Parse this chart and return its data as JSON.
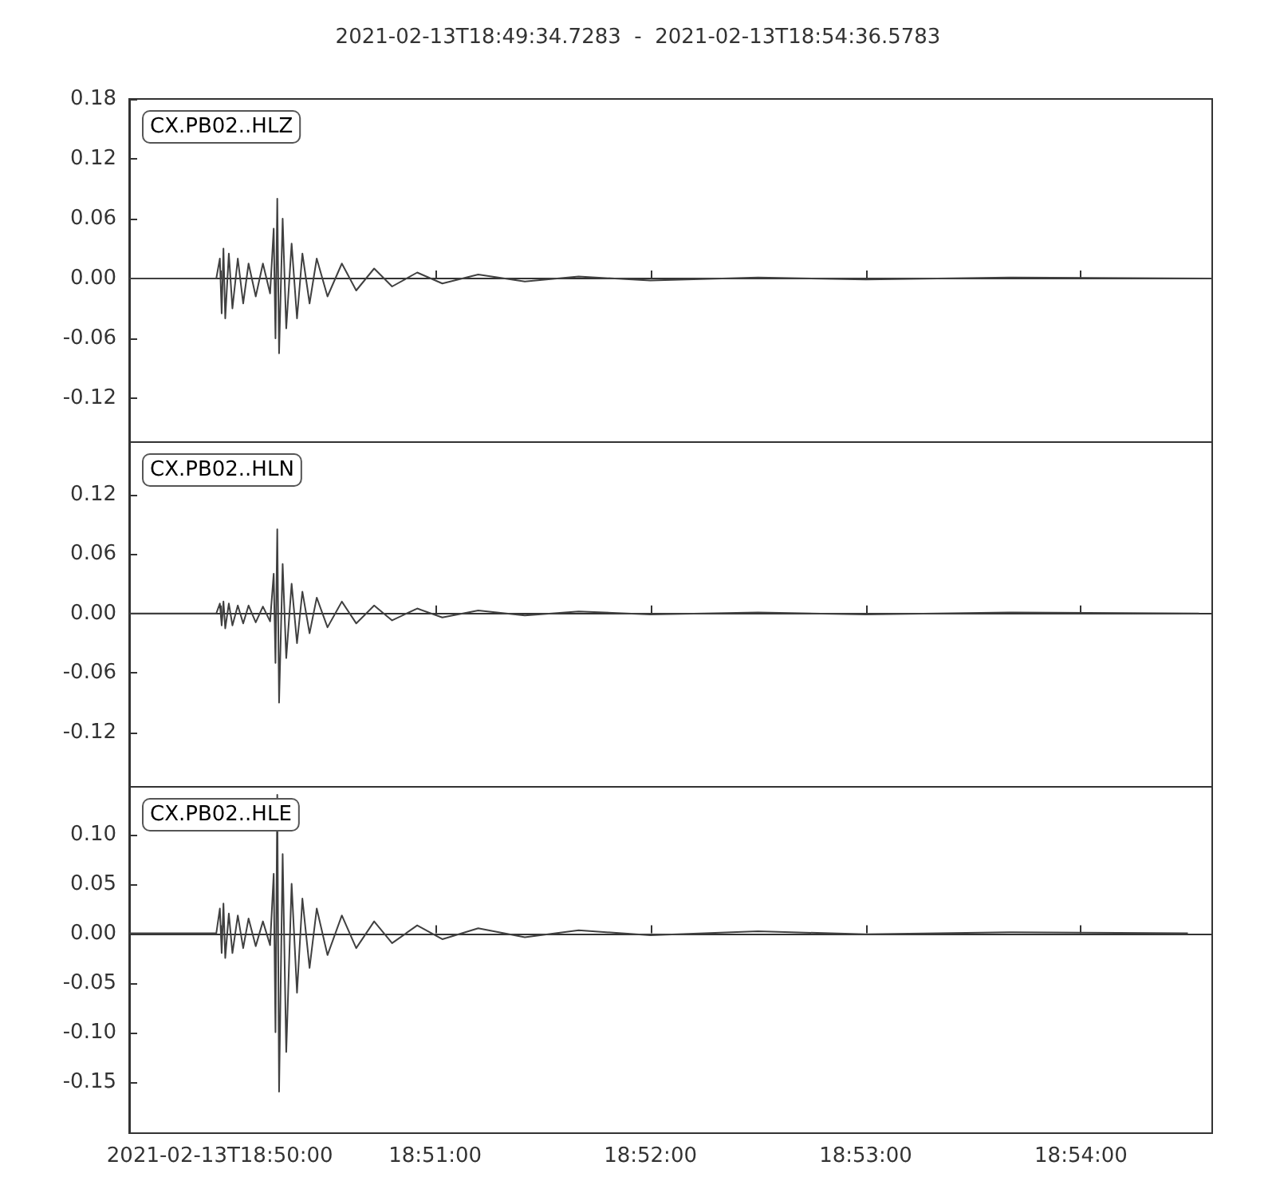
{
  "chart_data": [
    {
      "type": "line",
      "title": "2021-02-13T18:49:34.7283  -  2021-02-13T18:54:36.5783",
      "annotations": [
        "CX.PB02..HLZ"
      ],
      "tick_labels": "y",
      "xlim": [
        "2021-02-13T18:49:34.7283",
        "2021-02-13T18:54:36.5783"
      ],
      "xticks": [
        {
          "value": "2021-02-13T18:50:00",
          "label": null
        },
        {
          "value": "2021-02-13T18:51:00",
          "label": null
        },
        {
          "value": "2021-02-13T18:52:00",
          "label": null
        },
        {
          "value": "2021-02-13T18:53:00",
          "label": null
        },
        {
          "value": "2021-02-13T18:54:00",
          "label": null
        }
      ],
      "ylim": [
        -0.164,
        0.18
      ],
      "yticks": [
        {
          "value": -0.12,
          "label": "-0.12"
        },
        {
          "value": -0.06,
          "label": "-0.06"
        },
        {
          "value": 0,
          "label": "0.00"
        },
        {
          "value": 0.06,
          "label": "0.06"
        },
        {
          "value": 0.12,
          "label": "0.12"
        },
        {
          "value": 0.18,
          "label": "0.18"
        }
      ],
      "x": [
        "2021-02-13T18:49:34.7283",
        "2021-02-13T18:49:59",
        "2021-02-13T18:50:00",
        "2021-02-13T18:50:00.5",
        "2021-02-13T18:50:01",
        "2021-02-13T18:50:01.5",
        "2021-02-13T18:50:02.5",
        "2021-02-13T18:50:03.5",
        "2021-02-13T18:50:05",
        "2021-02-13T18:50:06.5",
        "2021-02-13T18:50:08",
        "2021-02-13T18:50:10",
        "2021-02-13T18:50:12",
        "2021-02-13T18:50:14",
        "2021-02-13T18:50:15",
        "2021-02-13T18:50:15.5",
        "2021-02-13T18:50:16",
        "2021-02-13T18:50:16.5",
        "2021-02-13T18:50:17.5",
        "2021-02-13T18:50:18.5",
        "2021-02-13T18:50:20",
        "2021-02-13T18:50:21.5",
        "2021-02-13T18:50:23",
        "2021-02-13T18:50:25",
        "2021-02-13T18:50:27",
        "2021-02-13T18:50:30",
        "2021-02-13T18:50:34",
        "2021-02-13T18:50:38",
        "2021-02-13T18:50:43",
        "2021-02-13T18:50:48",
        "2021-02-13T18:50:55",
        "2021-02-13T18:51:02",
        "2021-02-13T18:51:12",
        "2021-02-13T18:51:25",
        "2021-02-13T18:51:40",
        "2021-02-13T18:52:00",
        "2021-02-13T18:52:30",
        "2021-02-13T18:53:00",
        "2021-02-13T18:53:40",
        "2021-02-13T18:54:36.5783"
      ],
      "series": [
        {
          "color": "#404040",
          "values": [
            0,
            0,
            0.02,
            -0.035,
            0.03,
            -0.04,
            0.025,
            -0.03,
            0.02,
            -0.025,
            0.015,
            -0.018,
            0.015,
            -0.015,
            0.05,
            -0.06,
            0.08,
            -0.075,
            0.06,
            -0.05,
            0.035,
            -0.04,
            0.025,
            -0.025,
            0.02,
            -0.018,
            0.015,
            -0.012,
            0.01,
            -0.008,
            0.006,
            -0.005,
            0.004,
            -0.003,
            0.002,
            -0.002,
            0.001,
            -0.001,
            0.001,
            0
          ]
        }
      ]
    },
    {
      "type": "line",
      "annotations": [
        "CX.PB02..HLN"
      ],
      "tick_labels": "y",
      "xlim": [
        "2021-02-13T18:49:34.7283",
        "2021-02-13T18:54:36.5783"
      ],
      "xticks": [
        {
          "value": "2021-02-13T18:50:00",
          "label": null
        },
        {
          "value": "2021-02-13T18:51:00",
          "label": null
        },
        {
          "value": "2021-02-13T18:52:00",
          "label": null
        },
        {
          "value": "2021-02-13T18:53:00",
          "label": null
        },
        {
          "value": "2021-02-13T18:54:00",
          "label": null
        }
      ],
      "ylim": [
        -0.175,
        0.173
      ],
      "yticks": [
        {
          "value": -0.12,
          "label": "-0.12"
        },
        {
          "value": -0.06,
          "label": "-0.06"
        },
        {
          "value": 0,
          "label": "0.00"
        },
        {
          "value": 0.06,
          "label": "0.06"
        },
        {
          "value": 0.12,
          "label": "0.12"
        }
      ],
      "x": [
        "2021-02-13T18:49:34.7283",
        "2021-02-13T18:49:59",
        "2021-02-13T18:50:00",
        "2021-02-13T18:50:00.5",
        "2021-02-13T18:50:01",
        "2021-02-13T18:50:01.5",
        "2021-02-13T18:50:02.5",
        "2021-02-13T18:50:03.5",
        "2021-02-13T18:50:05",
        "2021-02-13T18:50:06.5",
        "2021-02-13T18:50:08",
        "2021-02-13T18:50:10",
        "2021-02-13T18:50:12",
        "2021-02-13T18:50:14",
        "2021-02-13T18:50:15",
        "2021-02-13T18:50:15.5",
        "2021-02-13T18:50:16",
        "2021-02-13T18:50:16.5",
        "2021-02-13T18:50:17.5",
        "2021-02-13T18:50:18.5",
        "2021-02-13T18:50:20",
        "2021-02-13T18:50:21.5",
        "2021-02-13T18:50:23",
        "2021-02-13T18:50:25",
        "2021-02-13T18:50:27",
        "2021-02-13T18:50:30",
        "2021-02-13T18:50:34",
        "2021-02-13T18:50:38",
        "2021-02-13T18:50:43",
        "2021-02-13T18:50:48",
        "2021-02-13T18:50:55",
        "2021-02-13T18:51:02",
        "2021-02-13T18:51:12",
        "2021-02-13T18:51:25",
        "2021-02-13T18:51:40",
        "2021-02-13T18:52:00",
        "2021-02-13T18:52:30",
        "2021-02-13T18:53:00",
        "2021-02-13T18:53:40",
        "2021-02-13T18:54:32.9"
      ],
      "series": [
        {
          "color": "#404040",
          "values": [
            0,
            0,
            0.01,
            -0.012,
            0.012,
            -0.015,
            0.01,
            -0.012,
            0.008,
            -0.01,
            0.008,
            -0.009,
            0.007,
            -0.008,
            0.04,
            -0.05,
            0.085,
            -0.09,
            0.05,
            -0.045,
            0.03,
            -0.03,
            0.022,
            -0.02,
            0.016,
            -0.014,
            0.012,
            -0.01,
            0.008,
            -0.007,
            0.005,
            -0.004,
            0.003,
            -0.002,
            0.002,
            -0.001,
            0.001,
            -0.001,
            0.001,
            0
          ]
        }
      ]
    },
    {
      "type": "line",
      "annotations": [
        "CX.PB02..HLE"
      ],
      "xlim": [
        "2021-02-13T18:49:34.7283",
        "2021-02-13T18:54:36.5783"
      ],
      "xticks": [
        {
          "value": "2021-02-13T18:50:00",
          "label": "2021-02-13T18:50:00"
        },
        {
          "value": "2021-02-13T18:51:00",
          "label": "18:51:00"
        },
        {
          "value": "2021-02-13T18:52:00",
          "label": "18:52:00"
        },
        {
          "value": "2021-02-13T18:53:00",
          "label": "18:53:00"
        },
        {
          "value": "2021-02-13T18:54:00",
          "label": "18:54:00"
        }
      ],
      "ylim": [
        -0.202,
        0.148
      ],
      "yticks": [
        {
          "value": -0.15,
          "label": "-0.15"
        },
        {
          "value": -0.1,
          "label": "-0.10"
        },
        {
          "value": -0.05,
          "label": "-0.05"
        },
        {
          "value": 0,
          "label": "0.00"
        },
        {
          "value": 0.05,
          "label": "0.05"
        },
        {
          "value": 0.1,
          "label": "0.10"
        }
      ],
      "x": [
        "2021-02-13T18:49:34.7283",
        "2021-02-13T18:49:59",
        "2021-02-13T18:50:00",
        "2021-02-13T18:50:00.5",
        "2021-02-13T18:50:01",
        "2021-02-13T18:50:01.5",
        "2021-02-13T18:50:02.5",
        "2021-02-13T18:50:03.5",
        "2021-02-13T18:50:05",
        "2021-02-13T18:50:06.5",
        "2021-02-13T18:50:08",
        "2021-02-13T18:50:10",
        "2021-02-13T18:50:12",
        "2021-02-13T18:50:14",
        "2021-02-13T18:50:15",
        "2021-02-13T18:50:15.5",
        "2021-02-13T18:50:16",
        "2021-02-13T18:50:16.5",
        "2021-02-13T18:50:17.5",
        "2021-02-13T18:50:18.5",
        "2021-02-13T18:50:20",
        "2021-02-13T18:50:21.5",
        "2021-02-13T18:50:23",
        "2021-02-13T18:50:25",
        "2021-02-13T18:50:27",
        "2021-02-13T18:50:30",
        "2021-02-13T18:50:34",
        "2021-02-13T18:50:38",
        "2021-02-13T18:50:43",
        "2021-02-13T18:50:48",
        "2021-02-13T18:50:55",
        "2021-02-13T18:51:02",
        "2021-02-13T18:51:12",
        "2021-02-13T18:51:25",
        "2021-02-13T18:51:40",
        "2021-02-13T18:52:00",
        "2021-02-13T18:52:30",
        "2021-02-13T18:53:00",
        "2021-02-13T18:53:40",
        "2021-02-13T18:54:29.8"
      ],
      "series": [
        {
          "color": "#404040",
          "values": [
            0,
            0,
            0.025,
            -0.02,
            0.03,
            -0.025,
            0.02,
            -0.02,
            0.018,
            -0.015,
            0.015,
            -0.013,
            0.012,
            -0.012,
            0.06,
            -0.1,
            0.14,
            -0.16,
            0.08,
            -0.12,
            0.05,
            -0.06,
            0.035,
            -0.035,
            0.025,
            -0.022,
            0.018,
            -0.015,
            0.012,
            -0.01,
            0.008,
            -0.006,
            0.005,
            -0.004,
            0.003,
            -0.002,
            0.002,
            -0.001,
            0.001,
            0
          ]
        }
      ]
    }
  ]
}
